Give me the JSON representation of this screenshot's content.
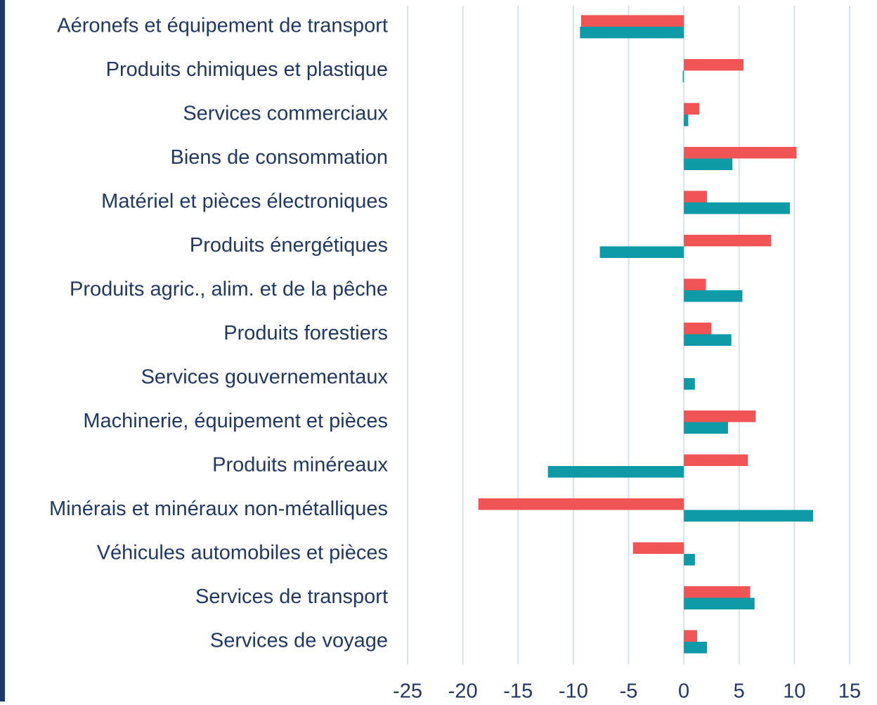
{
  "chart_data": {
    "type": "barh",
    "categories": [
      "Aéronefs et équipement de transport",
      "Produits chimiques et plastique",
      "Services commerciaux",
      "Biens de consommation",
      "Matériel et pièces électroniques",
      "Produits énergétiques",
      "Produits agric., alim. et de la pêche",
      "Produits forestiers",
      "Services gouvernementaux",
      "Machinerie, équipement et pièces",
      "Produits minéreaux",
      "Minérais et minéraux non-métalliques",
      "Véhicules automobiles et pièces",
      "Services de transport",
      "Services de voyage"
    ],
    "series": [
      {
        "color": "#f05454",
        "values": [
          -9.3,
          5.4,
          1.4,
          10.2,
          2.1,
          7.9,
          2.0,
          2.5,
          0,
          6.5,
          5.8,
          -18.6,
          -4.6,
          6.0,
          1.2
        ]
      },
      {
        "color": "#0e9aa7",
        "values": [
          -9.4,
          -0.1,
          0.4,
          4.4,
          9.6,
          -7.6,
          5.3,
          4.3,
          1.0,
          4.0,
          -12.3,
          11.7,
          1.0,
          6.4,
          2.1
        ]
      }
    ],
    "xlim": [
      -25,
      15
    ],
    "xticks": [
      -25,
      -20,
      -15,
      -10,
      -5,
      0,
      5,
      10,
      15
    ],
    "grid": true
  }
}
